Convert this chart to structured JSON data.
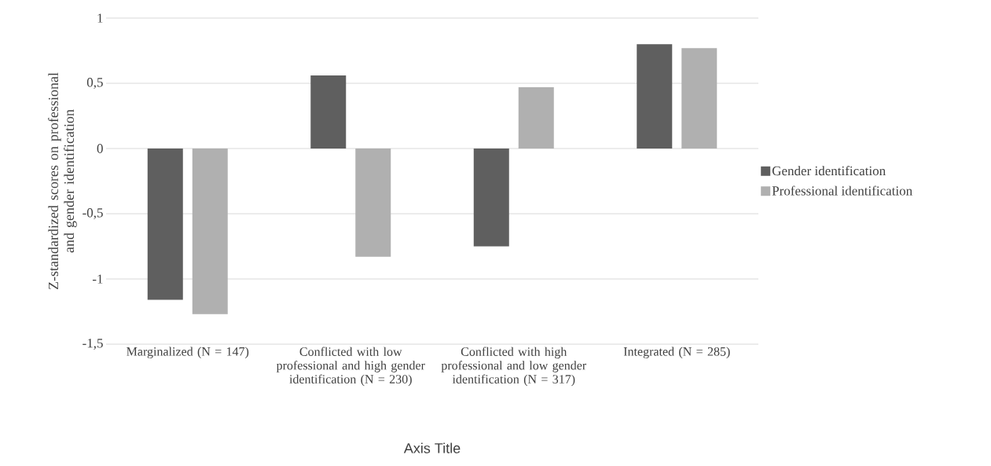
{
  "chart_data": {
    "type": "bar",
    "xlabel": "Axis Title",
    "ylabel": "Z-standardized scores on professional and gender identification",
    "categories": [
      "Marginalized (N = 147)",
      "Conflicted with low professional and high gender identification (N = 230)",
      "Conflicted with high professional and low gender identification (N = 317)",
      "Integrated (N = 285)"
    ],
    "series": [
      {
        "name": "Gender identification",
        "color": "#5f5f5f",
        "values": [
          -1.16,
          0.56,
          -0.75,
          0.8
        ]
      },
      {
        "name": "Professional identification",
        "color": "#b0b0b0",
        "values": [
          -1.27,
          -0.83,
          0.47,
          0.77
        ]
      }
    ],
    "ylim": [
      -1.5,
      1
    ],
    "yticks": [
      {
        "value": -1.5,
        "label": "-1,5"
      },
      {
        "value": -1,
        "label": "-1"
      },
      {
        "value": -0.5,
        "label": "-0,5"
      },
      {
        "value": 0,
        "label": "0"
      },
      {
        "value": 0.5,
        "label": "0,5"
      },
      {
        "value": 1,
        "label": "1"
      }
    ],
    "grid": "y",
    "legend": "right"
  }
}
